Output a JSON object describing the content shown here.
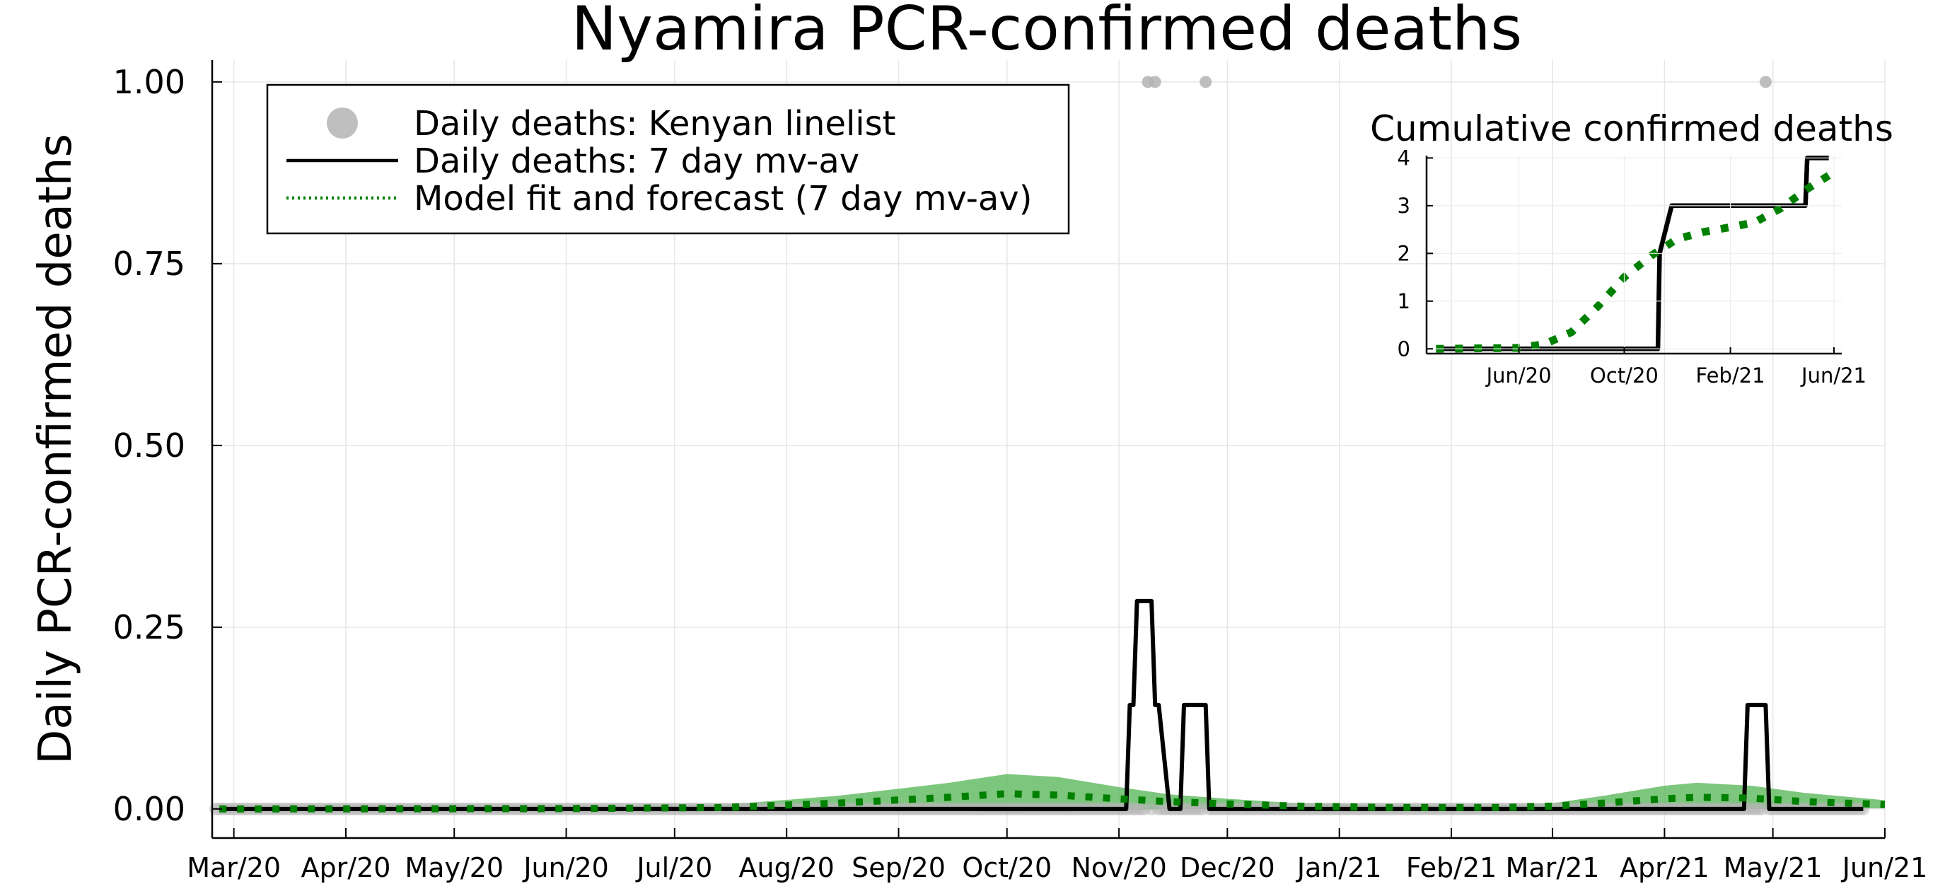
{
  "chart_data": [
    {
      "type": "line",
      "title": "Nyamira PCR-confirmed deaths",
      "xlabel": "",
      "ylabel": "Daily PCR-confirmed deaths",
      "x_ticks": [
        "Mar/20",
        "Apr/20",
        "May/20",
        "Jun/20",
        "Jul/20",
        "Aug/20",
        "Sep/20",
        "Oct/20",
        "Nov/20",
        "Dec/20",
        "Jan/21",
        "Feb/21",
        "Mar/21",
        "Apr/21",
        "May/21",
        "Jun/21"
      ],
      "y_ticks": [
        "0.00",
        "0.25",
        "0.50",
        "0.75",
        "1.00"
      ],
      "xlim": [
        "2020-02-24",
        "2021-06-01"
      ],
      "ylim": [
        -0.04,
        1.03
      ],
      "grid": true,
      "legend_position": "top-left",
      "legend": [
        "Daily deaths: Kenyan linelist",
        "Daily deaths: 7 day mv-av",
        "Model fit and forecast (7 day mv-av)"
      ],
      "series": [
        {
          "name": "Daily deaths: Kenyan linelist",
          "style": "scatter",
          "color": "#b3b3b3",
          "x": [
            "2020-11-09",
            "2020-11-11",
            "2020-11-25",
            "2021-04-29"
          ],
          "y": [
            1,
            1,
            1,
            1
          ],
          "zero_range": [
            "2020-02-25",
            "2021-05-26"
          ]
        },
        {
          "name": "Daily deaths: 7 day mv-av",
          "style": "line",
          "color": "#000000",
          "x": [
            "2020-02-26",
            "2020-11-03",
            "2020-11-04",
            "2020-11-05",
            "2020-11-06",
            "2020-11-10",
            "2020-11-11",
            "2020-11-12",
            "2020-11-15",
            "2020-11-18",
            "2020-11-19",
            "2020-11-25",
            "2020-11-26",
            "2021-04-23",
            "2021-04-24",
            "2021-04-29",
            "2021-04-30",
            "2021-05-26"
          ],
          "y": [
            0,
            0,
            0.143,
            0.143,
            0.286,
            0.286,
            0.143,
            0.143,
            0,
            0,
            0.143,
            0.143,
            0,
            0,
            0.143,
            0.143,
            0,
            0
          ]
        },
        {
          "name": "Model fit and forecast (7 day mv-av)",
          "style": "dotted",
          "color": "#008000",
          "band_color": "#5cb85c",
          "x": [
            "2020-02-26",
            "2020-06-01",
            "2020-07-15",
            "2020-08-15",
            "2020-09-15",
            "2020-10-01",
            "2020-10-15",
            "2020-11-01",
            "2020-11-15",
            "2020-12-01",
            "2020-12-20",
            "2021-01-15",
            "2021-02-15",
            "2021-03-01",
            "2021-03-15",
            "2021-04-01",
            "2021-04-10",
            "2021-04-25",
            "2021-05-10",
            "2021-06-01"
          ],
          "y": [
            0,
            0.0005,
            0.002,
            0.008,
            0.016,
            0.021,
            0.019,
            0.014,
            0.01,
            0.007,
            0.004,
            0.002,
            0.002,
            0.004,
            0.008,
            0.014,
            0.016,
            0.015,
            0.01,
            0.006
          ],
          "band_upper": [
            0.001,
            0.002,
            0.006,
            0.018,
            0.036,
            0.048,
            0.044,
            0.03,
            0.02,
            0.014,
            0.008,
            0.005,
            0.004,
            0.008,
            0.018,
            0.032,
            0.036,
            0.032,
            0.022,
            0.012
          ],
          "band_lower": [
            0,
            0,
            0,
            0,
            -0.002,
            -0.005,
            -0.004,
            -0.002,
            0,
            0,
            0,
            0,
            0,
            0,
            0,
            0,
            0,
            0,
            0,
            0.001
          ]
        }
      ]
    },
    {
      "type": "line",
      "title": "Cumulative confirmed deaths",
      "xlabel": "",
      "ylabel": "",
      "x_ticks": [
        "Jun/20",
        "Oct/20",
        "Feb/21",
        "Jun/21"
      ],
      "y_ticks": [
        "0",
        "1",
        "2",
        "3",
        "4"
      ],
      "xlim": [
        "2020-02-15",
        "2021-06-10"
      ],
      "ylim": [
        -0.1,
        4.05
      ],
      "series": [
        {
          "style": "line",
          "color": "#000000",
          "x": [
            "2020-02-26",
            "2020-11-09",
            "2020-11-11",
            "2020-11-25",
            "2021-04-29",
            "2021-05-01",
            "2021-05-26"
          ],
          "y": [
            0,
            0,
            2,
            3,
            3,
            4,
            4
          ]
        },
        {
          "style": "dotted",
          "color": "#008000",
          "x": [
            "2020-02-26",
            "2020-06-01",
            "2020-07-01",
            "2020-08-01",
            "2020-09-01",
            "2020-10-01",
            "2020-11-01",
            "2020-12-01",
            "2021-01-01",
            "2021-02-01",
            "2021-03-01",
            "2021-04-01",
            "2021-05-01",
            "2021-06-01"
          ],
          "y": [
            0,
            0.02,
            0.1,
            0.35,
            0.9,
            1.5,
            1.95,
            2.3,
            2.45,
            2.55,
            2.65,
            2.95,
            3.35,
            3.7
          ]
        }
      ]
    }
  ]
}
